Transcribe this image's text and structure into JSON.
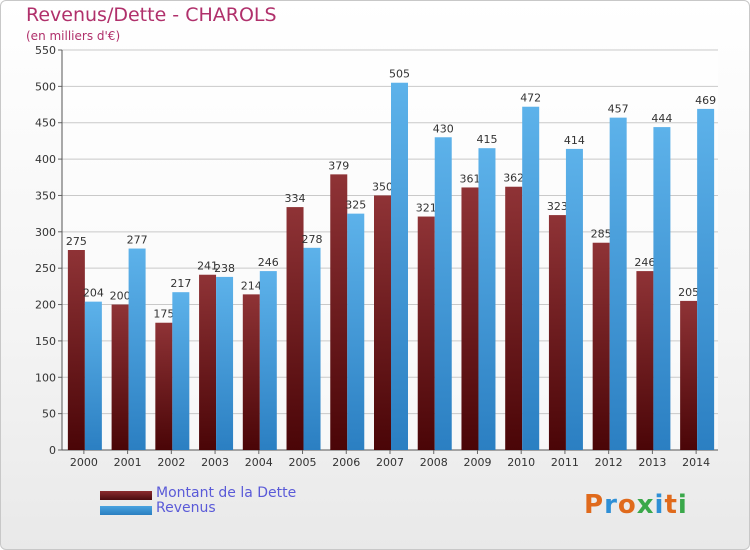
{
  "title": "Revenus/Dette - CHAROLS",
  "subtitle": "(en milliers d'€)",
  "chart_data": {
    "type": "bar",
    "title": "Revenus/Dette - CHAROLS",
    "subtitle": "(en milliers d'€)",
    "categories": [
      "2000",
      "2001",
      "2002",
      "2003",
      "2004",
      "2005",
      "2006",
      "2007",
      "2008",
      "2009",
      "2010",
      "2011",
      "2012",
      "2013",
      "2014"
    ],
    "series": [
      {
        "name": "Montant de la Dette",
        "values": [
          275,
          200,
          175,
          241,
          214,
          334,
          379,
          350,
          321,
          361,
          362,
          323,
          285,
          246,
          205
        ],
        "color": "#8b2b2e"
      },
      {
        "name": "Revenus",
        "values": [
          204,
          277,
          217,
          238,
          246,
          278,
          325,
          505,
          430,
          415,
          472,
          414,
          457,
          444,
          469
        ],
        "color": "#4aa3e0"
      }
    ],
    "ylim": [
      0,
      550
    ],
    "yticks": [
      0,
      50,
      100,
      150,
      200,
      250,
      300,
      350,
      400,
      450,
      500,
      550
    ],
    "grid": true,
    "legend": "bottom-left"
  },
  "legend": [
    {
      "label": "Montant de la Dette",
      "color": "#8b2b2e"
    },
    {
      "label": "Revenus",
      "color": "#4aa3e0"
    }
  ],
  "logo": {
    "text": "Proxiti",
    "colors": [
      "#e06a1c",
      "#2e8fd6",
      "#e06a1c",
      "#3aa84a",
      "#2e8fd6",
      "#e06a1c",
      "#3aa84a"
    ]
  }
}
